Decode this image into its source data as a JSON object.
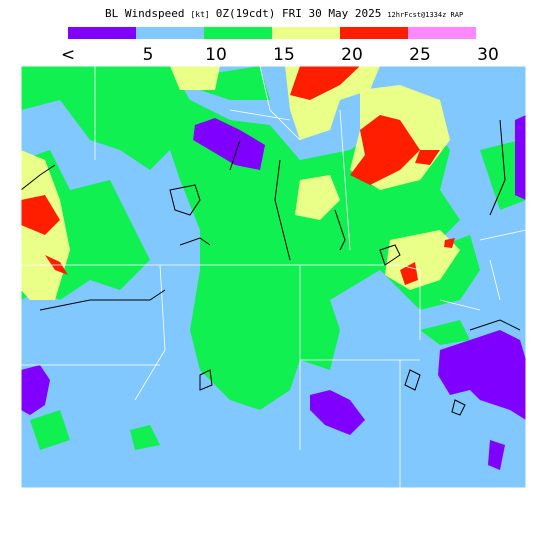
{
  "header": {
    "title": "BL Windspeed",
    "units": "[kt]",
    "valid": "0Z(19cdt) FRI 30 May 2025",
    "forecast": "12hrFcst@1334z RAP"
  },
  "legend": {
    "colors": [
      "#8000ff",
      "#80c8ff",
      "#10f050",
      "#eaff88",
      "#ff1e00",
      "#ff88ff"
    ],
    "labels": [
      "<",
      "5",
      "10",
      "15",
      "20",
      "25",
      "30"
    ]
  }
}
